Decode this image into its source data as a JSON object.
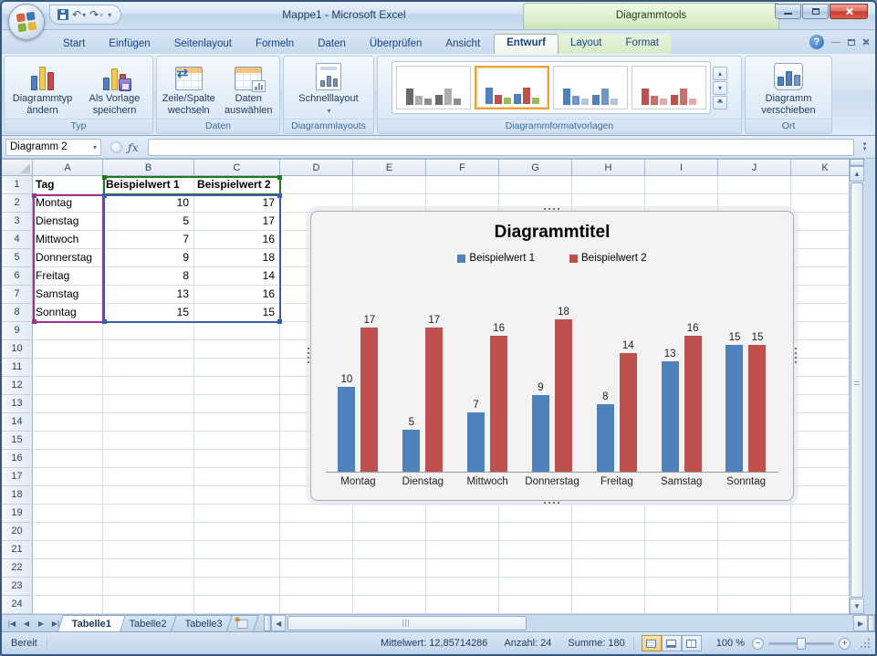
{
  "window": {
    "title": "Mappe1 - Microsoft Excel",
    "contextual_label": "Diagrammtools"
  },
  "ribbon": {
    "tabs": [
      {
        "label": "Start"
      },
      {
        "label": "Einfügen"
      },
      {
        "label": "Seitenlayout"
      },
      {
        "label": "Formeln"
      },
      {
        "label": "Daten"
      },
      {
        "label": "Überprüfen"
      },
      {
        "label": "Ansicht"
      },
      {
        "label": "Entwurf",
        "active": true,
        "contextual": true
      },
      {
        "label": "Layout",
        "contextual": true
      },
      {
        "label": "Format",
        "contextual": true
      }
    ],
    "groups": {
      "typ": {
        "label": "Typ",
        "buttons": [
          {
            "lines": [
              "Diagrammtyp",
              "ändern"
            ]
          },
          {
            "lines": [
              "Als Vorlage",
              "speichern"
            ]
          }
        ]
      },
      "daten": {
        "label": "Daten",
        "buttons": [
          {
            "lines": [
              "Zeile/Spalte",
              "wechseln"
            ]
          },
          {
            "lines": [
              "Daten",
              "auswählen"
            ]
          }
        ]
      },
      "layouts": {
        "label": "Diagrammlayouts",
        "button_label": "Schnelllayout"
      },
      "styles": {
        "label": "Diagrammformatvorlagen",
        "items": [
          {
            "colors": [
              "#6A6A6A",
              "#ADADAD",
              "#8C8C8C"
            ],
            "selected": false
          },
          {
            "colors": [
              "#4F81BD",
              "#C0504D",
              "#9BBB59"
            ],
            "selected": true
          },
          {
            "colors": [
              "#4F81BD",
              "#7396C8",
              "#B3C6E0"
            ],
            "selected": false
          },
          {
            "colors": [
              "#C0504D",
              "#CC6E6B",
              "#E0ABA9"
            ],
            "selected": false
          }
        ]
      },
      "ort": {
        "label": "Ort",
        "button_lines": [
          "Diagramm",
          "verschieben"
        ]
      }
    }
  },
  "formula_bar": {
    "name_box": "Diagramm 2",
    "fx": "ƒx"
  },
  "sheet": {
    "columns": [
      "A",
      "B",
      "C",
      "D",
      "E",
      "F",
      "G",
      "H",
      "I",
      "J",
      "K"
    ],
    "visible_rows": 24,
    "table": {
      "cells": [
        [
          "Tag",
          "Beispielwert 1",
          "Beispielwert 2"
        ],
        [
          "Montag",
          "10",
          "17"
        ],
        [
          "Dienstag",
          "5",
          "17"
        ],
        [
          "Mittwoch",
          "7",
          "16"
        ],
        [
          "Donnerstag",
          "9",
          "18"
        ],
        [
          "Freitag",
          "8",
          "14"
        ],
        [
          "Samstag",
          "13",
          "16"
        ],
        [
          "Sonntag",
          "15",
          "15"
        ]
      ]
    }
  },
  "chart_data": {
    "type": "bar",
    "title": "Diagrammtitel",
    "categories": [
      "Montag",
      "Dienstag",
      "Mittwoch",
      "Donnerstag",
      "Freitag",
      "Samstag",
      "Sonntag"
    ],
    "series": [
      {
        "name": "Beispielwert 1",
        "color": "#4F81BD",
        "values": [
          10,
          5,
          7,
          9,
          8,
          13,
          15
        ]
      },
      {
        "name": "Beispielwert 2",
        "color": "#C0504D",
        "values": [
          17,
          17,
          16,
          18,
          14,
          16,
          15
        ]
      }
    ],
    "ylim": [
      0,
      18
    ],
    "data_labels": true,
    "legend_position": "top",
    "gridlines": false,
    "y_axis_visible": false
  },
  "sheet_tabs": {
    "tabs": [
      {
        "label": "Tabelle1",
        "active": true
      },
      {
        "label": "Tabelle2"
      },
      {
        "label": "Tabelle3"
      }
    ]
  },
  "status_bar": {
    "mode": "Bereit",
    "stats": [
      "Mittelwert: 12,85714286",
      "Anzahl: 24",
      "Summe: 180"
    ],
    "zoom_label": "100 %"
  }
}
